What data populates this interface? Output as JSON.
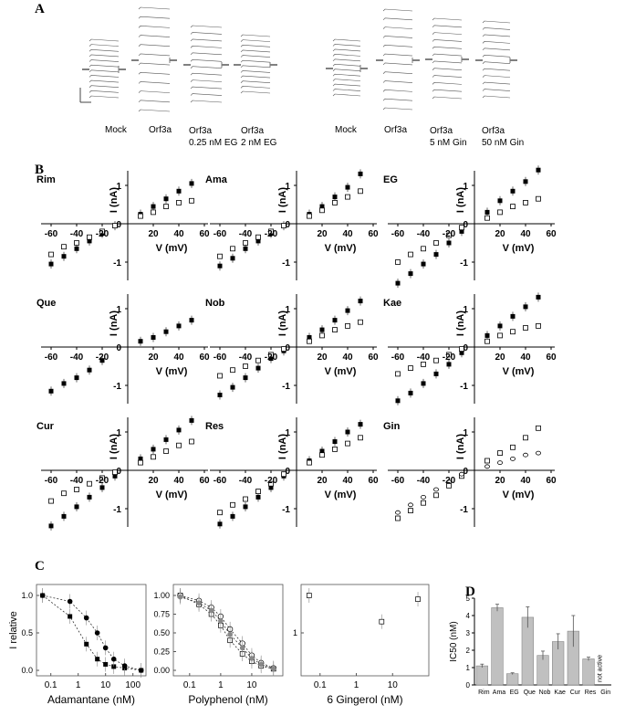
{
  "panels": {
    "A": "A",
    "B": "B",
    "C": "C",
    "D": "D"
  },
  "panel_a": {
    "left_labels": [
      {
        "line1": "Mock",
        "line2": ""
      },
      {
        "line1": "Orf3a",
        "line2": ""
      },
      {
        "line1": "Orf3a",
        "line2": "0.25 nM EG"
      },
      {
        "line1": "Orf3a",
        "line2": "2 nM EG"
      }
    ],
    "right_labels": [
      {
        "line1": "Mock",
        "line2": ""
      },
      {
        "line1": "Orf3a",
        "line2": ""
      },
      {
        "line1": "Orf3a",
        "line2": "5 nM Gin"
      },
      {
        "line1": "Orf3a",
        "line2": "50 nM Gin"
      }
    ]
  },
  "colors": {
    "bar": "#c0c0c0",
    "marker": "#000000",
    "trace": "#555555",
    "gray_marker": "#888888"
  },
  "chart_data": [
    {
      "type": "scatter",
      "panel": "B",
      "xlabel": "V (mV)",
      "ylabel": "I (nA)",
      "xticks": [
        -60,
        -40,
        -20,
        20,
        40,
        60
      ],
      "yticks": [
        -1,
        0,
        1
      ],
      "xlim": [
        -65,
        60
      ],
      "ylim": [
        -1.7,
        1.6
      ],
      "plots": [
        {
          "title": "Rim",
          "filled": [
            [
              -60,
              -1.05
            ],
            [
              -50,
              -0.85
            ],
            [
              -40,
              -0.65
            ],
            [
              -30,
              -0.45
            ],
            [
              -20,
              -0.25
            ],
            [
              -10,
              -0.05
            ],
            [
              10,
              0.25
            ],
            [
              20,
              0.45
            ],
            [
              30,
              0.65
            ],
            [
              40,
              0.85
            ],
            [
              50,
              1.05
            ]
          ],
          "open": [
            [
              -60,
              -0.8
            ],
            [
              -50,
              -0.6
            ],
            [
              -40,
              -0.5
            ],
            [
              -30,
              -0.35
            ],
            [
              -20,
              -0.2
            ],
            [
              -10,
              -0.05
            ],
            [
              10,
              0.2
            ],
            [
              20,
              0.3
            ],
            [
              30,
              0.45
            ],
            [
              40,
              0.55
            ],
            [
              50,
              0.6
            ]
          ]
        },
        {
          "title": "Ama",
          "filled": [
            [
              -60,
              -1.1
            ],
            [
              -50,
              -0.9
            ],
            [
              -40,
              -0.65
            ],
            [
              -30,
              -0.45
            ],
            [
              -20,
              -0.25
            ],
            [
              -10,
              -0.05
            ],
            [
              10,
              0.25
            ],
            [
              20,
              0.45
            ],
            [
              30,
              0.7
            ],
            [
              40,
              0.95
            ],
            [
              50,
              1.3
            ]
          ],
          "open": [
            [
              -60,
              -0.85
            ],
            [
              -50,
              -0.65
            ],
            [
              -40,
              -0.5
            ],
            [
              -30,
              -0.35
            ],
            [
              -20,
              -0.2
            ],
            [
              -10,
              -0.05
            ],
            [
              10,
              0.2
            ],
            [
              20,
              0.35
            ],
            [
              30,
              0.55
            ],
            [
              40,
              0.7
            ],
            [
              50,
              0.85
            ]
          ]
        },
        {
          "title": "EG",
          "filled": [
            [
              -60,
              -1.55
            ],
            [
              -50,
              -1.3
            ],
            [
              -40,
              -1.05
            ],
            [
              -30,
              -0.8
            ],
            [
              -20,
              -0.5
            ],
            [
              -10,
              -0.2
            ],
            [
              10,
              0.3
            ],
            [
              20,
              0.6
            ],
            [
              30,
              0.85
            ],
            [
              40,
              1.1
            ],
            [
              50,
              1.4
            ]
          ],
          "open": [
            [
              -60,
              -1.0
            ],
            [
              -50,
              -0.8
            ],
            [
              -40,
              -0.65
            ],
            [
              -30,
              -0.5
            ],
            [
              -20,
              -0.3
            ],
            [
              -10,
              -0.1
            ],
            [
              10,
              0.15
            ],
            [
              20,
              0.3
            ],
            [
              30,
              0.45
            ],
            [
              40,
              0.55
            ],
            [
              50,
              0.65
            ]
          ]
        },
        {
          "title": "Que",
          "filled": [
            [
              -60,
              -1.15
            ],
            [
              -50,
              -0.95
            ],
            [
              -40,
              -0.8
            ],
            [
              -30,
              -0.6
            ],
            [
              -20,
              -0.35
            ],
            [
              10,
              0.15
            ],
            [
              20,
              0.25
            ],
            [
              30,
              0.4
            ],
            [
              40,
              0.55
            ],
            [
              50,
              0.7
            ]
          ],
          "open": []
        },
        {
          "title": "Nob",
          "filled": [
            [
              -60,
              -1.25
            ],
            [
              -50,
              -1.05
            ],
            [
              -40,
              -0.8
            ],
            [
              -30,
              -0.55
            ],
            [
              -20,
              -0.3
            ],
            [
              -10,
              -0.1
            ],
            [
              10,
              0.25
            ],
            [
              20,
              0.45
            ],
            [
              30,
              0.7
            ],
            [
              40,
              0.95
            ],
            [
              50,
              1.2
            ]
          ],
          "open": [
            [
              -60,
              -0.75
            ],
            [
              -50,
              -0.6
            ],
            [
              -40,
              -0.5
            ],
            [
              -30,
              -0.35
            ],
            [
              -20,
              -0.2
            ],
            [
              -10,
              -0.05
            ],
            [
              10,
              0.15
            ],
            [
              20,
              0.3
            ],
            [
              30,
              0.45
            ],
            [
              40,
              0.55
            ],
            [
              50,
              0.65
            ]
          ]
        },
        {
          "title": "Kae",
          "filled": [
            [
              -60,
              -1.4
            ],
            [
              -50,
              -1.2
            ],
            [
              -40,
              -0.95
            ],
            [
              -30,
              -0.7
            ],
            [
              -20,
              -0.45
            ],
            [
              -10,
              -0.15
            ],
            [
              10,
              0.3
            ],
            [
              20,
              0.55
            ],
            [
              30,
              0.8
            ],
            [
              40,
              1.05
            ],
            [
              50,
              1.3
            ]
          ],
          "open": [
            [
              -60,
              -0.7
            ],
            [
              -50,
              -0.55
            ],
            [
              -40,
              -0.45
            ],
            [
              -30,
              -0.35
            ],
            [
              -20,
              -0.2
            ],
            [
              -10,
              -0.05
            ],
            [
              10,
              0.15
            ],
            [
              20,
              0.3
            ],
            [
              30,
              0.4
            ],
            [
              40,
              0.5
            ],
            [
              50,
              0.55
            ]
          ]
        },
        {
          "title": "Cur",
          "filled": [
            [
              -60,
              -1.45
            ],
            [
              -50,
              -1.2
            ],
            [
              -40,
              -0.95
            ],
            [
              -30,
              -0.7
            ],
            [
              -20,
              -0.45
            ],
            [
              -10,
              -0.15
            ],
            [
              10,
              0.3
            ],
            [
              20,
              0.55
            ],
            [
              30,
              0.8
            ],
            [
              40,
              1.05
            ],
            [
              50,
              1.3
            ]
          ],
          "open": [
            [
              -60,
              -0.8
            ],
            [
              -50,
              -0.6
            ],
            [
              -40,
              -0.5
            ],
            [
              -30,
              -0.35
            ],
            [
              -20,
              -0.2
            ],
            [
              -10,
              -0.05
            ],
            [
              10,
              0.2
            ],
            [
              20,
              0.35
            ],
            [
              30,
              0.5
            ],
            [
              40,
              0.65
            ],
            [
              50,
              0.75
            ]
          ]
        },
        {
          "title": "Res",
          "filled": [
            [
              -60,
              -1.4
            ],
            [
              -50,
              -1.2
            ],
            [
              -40,
              -0.95
            ],
            [
              -30,
              -0.7
            ],
            [
              -20,
              -0.45
            ],
            [
              -10,
              -0.15
            ],
            [
              10,
              0.25
            ],
            [
              20,
              0.5
            ],
            [
              30,
              0.75
            ],
            [
              40,
              1.0
            ],
            [
              50,
              1.2
            ]
          ],
          "open": [
            [
              -60,
              -1.1
            ],
            [
              -50,
              -0.9
            ],
            [
              -40,
              -0.75
            ],
            [
              -30,
              -0.55
            ],
            [
              -20,
              -0.35
            ],
            [
              -10,
              -0.1
            ],
            [
              10,
              0.2
            ],
            [
              20,
              0.4
            ],
            [
              30,
              0.55
            ],
            [
              40,
              0.7
            ],
            [
              50,
              0.85
            ]
          ]
        },
        {
          "title": "Gin",
          "filled": [],
          "open": [
            [
              -60,
              -1.25
            ],
            [
              -50,
              -1.05
            ],
            [
              -40,
              -0.85
            ],
            [
              -30,
              -0.65
            ],
            [
              -20,
              -0.4
            ],
            [
              -10,
              -0.15
            ],
            [
              10,
              0.25
            ],
            [
              20,
              0.45
            ],
            [
              30,
              0.6
            ],
            [
              40,
              0.85
            ],
            [
              50,
              1.1
            ]
          ],
          "open2": [
            [
              -60,
              -1.1
            ],
            [
              -50,
              -0.9
            ],
            [
              -40,
              -0.7
            ],
            [
              -30,
              -0.5
            ],
            [
              -20,
              -0.3
            ],
            [
              -10,
              -0.1
            ],
            [
              10,
              0.1
            ],
            [
              20,
              0.2
            ],
            [
              30,
              0.3
            ],
            [
              40,
              0.4
            ],
            [
              50,
              0.45
            ]
          ]
        }
      ]
    },
    {
      "type": "scatter",
      "panel": "C",
      "ylabel": "I relative",
      "plots": [
        {
          "xlabel": "Adamantane (nM)",
          "xticks": [
            "0.1",
            "1",
            "10",
            "100"
          ],
          "yticks": [
            "0.0",
            "0.5",
            "1.0"
          ],
          "series": [
            {
              "name": "",
              "marker": "filled-square",
              "x": [
                0.05,
                0.5,
                2,
                5,
                10,
                20,
                50,
                200
              ],
              "y": [
                1.0,
                0.72,
                0.35,
                0.15,
                0.08,
                0.05,
                0.03,
                0.0
              ]
            },
            {
              "name": "",
              "marker": "filled-circle",
              "x": [
                0.05,
                0.5,
                2,
                5,
                10,
                20,
                50,
                200
              ],
              "y": [
                1.0,
                0.92,
                0.7,
                0.5,
                0.3,
                0.15,
                0.06,
                0.0
              ]
            }
          ]
        },
        {
          "xlabel": "Polyphenol (nM)",
          "xticks": [
            "0.1",
            "1",
            "10"
          ],
          "yticks": [
            "0.00",
            "0.25",
            "0.50",
            "0.75",
            "1.00"
          ],
          "series": [
            {
              "name": "",
              "marker": "open-square",
              "x": [
                0.05,
                0.2,
                0.5,
                1,
                2,
                5,
                10,
                20,
                50
              ],
              "y": [
                1.0,
                0.88,
                0.75,
                0.6,
                0.4,
                0.22,
                0.12,
                0.06,
                0.02
              ]
            },
            {
              "name": "",
              "marker": "open-circle",
              "x": [
                0.05,
                0.2,
                0.5,
                1,
                2,
                5,
                10,
                20,
                50
              ],
              "y": [
                1.0,
                0.93,
                0.84,
                0.72,
                0.55,
                0.36,
                0.2,
                0.1,
                0.03
              ]
            },
            {
              "name": "",
              "marker": "gray-circle",
              "x": [
                0.05,
                0.2,
                0.5,
                1,
                2,
                5,
                10,
                20,
                50
              ],
              "y": [
                0.98,
                0.9,
                0.8,
                0.66,
                0.48,
                0.3,
                0.16,
                0.08,
                0.02
              ]
            }
          ]
        },
        {
          "xlabel": "6 Gingerol (nM)",
          "xticks": [
            "0.1",
            "1",
            "10"
          ],
          "yticks": [
            "1"
          ],
          "series": [
            {
              "name": "",
              "marker": "open-square",
              "x": [
                0.05,
                5,
                50
              ],
              "y": [
                1.0,
                0.65,
                0.95
              ]
            }
          ]
        }
      ]
    },
    {
      "type": "bar",
      "panel": "D",
      "ylabel": "IC50 (nM)",
      "categories": [
        "Rim",
        "Ama",
        "EG",
        "Que",
        "Nob",
        "Kae",
        "Cur",
        "Res",
        "Gin"
      ],
      "values": [
        1.1,
        4.45,
        0.65,
        3.9,
        1.7,
        2.5,
        3.1,
        1.5,
        0
      ],
      "errors": [
        0.1,
        0.2,
        0.05,
        0.6,
        0.25,
        0.45,
        0.9,
        0.1,
        0
      ],
      "ylim": [
        0,
        5
      ],
      "yticks": [
        0,
        1,
        2,
        3,
        4,
        5
      ],
      "annotation": "not active"
    }
  ]
}
